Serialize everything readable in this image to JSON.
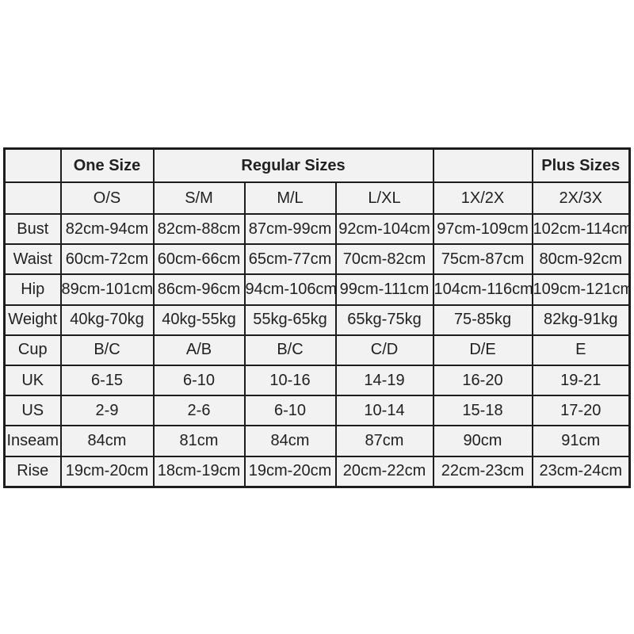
{
  "colors": {
    "page_bg": "#ffffff",
    "cell_bg": "#f2f2f2",
    "border": "#1d1d1d",
    "text": "#212121"
  },
  "chart_data": {
    "type": "table",
    "group_headers": [
      {
        "label": "",
        "colspan": 1
      },
      {
        "label": "One Size",
        "colspan": 1
      },
      {
        "label": "Regular Sizes",
        "colspan": 3
      },
      {
        "label": "",
        "colspan": 1
      },
      {
        "label": "Plus Sizes",
        "colspan": 1
      }
    ],
    "columns": [
      "",
      "O/S",
      "S/M",
      "M/L",
      "L/XL",
      "1X/2X",
      "2X/3X"
    ],
    "rows": [
      {
        "label": "Bust",
        "values": [
          "82cm-94cm",
          "82cm-88cm",
          "87cm-99cm",
          "92cm-104cm",
          "97cm-109cm",
          "102cm-114cm"
        ]
      },
      {
        "label": "Waist",
        "values": [
          "60cm-72cm",
          "60cm-66cm",
          "65cm-77cm",
          "70cm-82cm",
          "75cm-87cm",
          "80cm-92cm"
        ]
      },
      {
        "label": "Hip",
        "values": [
          "89cm-101cm",
          "86cm-96cm",
          "94cm-106cm",
          "99cm-111cm",
          "104cm-116cm",
          "109cm-121cm"
        ]
      },
      {
        "label": "Weight",
        "values": [
          "40kg-70kg",
          "40kg-55kg",
          "55kg-65kg",
          "65kg-75kg",
          "75-85kg",
          "82kg-91kg"
        ]
      },
      {
        "label": "Cup",
        "values": [
          "B/C",
          "A/B",
          "B/C",
          "C/D",
          "D/E",
          "E"
        ]
      },
      {
        "label": "UK",
        "values": [
          "6-15",
          "6-10",
          "10-16",
          "14-19",
          "16-20",
          "19-21"
        ]
      },
      {
        "label": "US",
        "values": [
          "2-9",
          "2-6",
          "6-10",
          "10-14",
          "15-18",
          "17-20"
        ]
      },
      {
        "label": "Inseam",
        "values": [
          "84cm",
          "81cm",
          "84cm",
          "87cm",
          "90cm",
          "91cm"
        ]
      },
      {
        "label": "Rise",
        "values": [
          "19cm-20cm",
          "18cm-19cm",
          "19cm-20cm",
          "20cm-22cm",
          "22cm-23cm",
          "23cm-24cm"
        ]
      }
    ]
  }
}
